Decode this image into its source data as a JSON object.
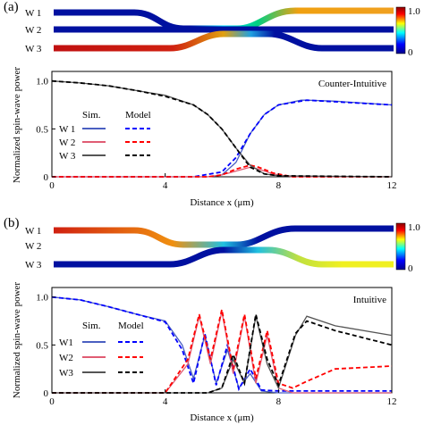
{
  "figure": {
    "panels": [
      {
        "label": "(a)",
        "waveguide_labels": [
          "W 1",
          "W 2",
          "W 3"
        ],
        "colorbar": {
          "max_label": "1.0",
          "min_label": "0",
          "colors": [
            "#00008b",
            "#0000ff",
            "#00ffff",
            "#ffff00",
            "#ff0000",
            "#8b0000"
          ]
        },
        "mode_label": "Counter-Intuitive"
      },
      {
        "label": "(b)",
        "waveguide_labels": [
          "W 1",
          "W 2",
          "W 3"
        ],
        "colorbar": {
          "max_label": "1.0",
          "min_label": "0",
          "colors": [
            "#00008b",
            "#0000ff",
            "#00ffff",
            "#ffff00",
            "#ff0000",
            "#8b0000"
          ]
        },
        "mode_label": "Intuitive"
      }
    ]
  },
  "chart_data": [
    {
      "type": "line",
      "panel": "a",
      "ylabel": "Normalized spin-wave power",
      "xlabel": "Distance x (μm)",
      "xlim": [
        0,
        12
      ],
      "ylim": [
        0,
        1.1
      ],
      "x_ticks": [
        "0",
        "4",
        "8",
        "12"
      ],
      "y_ticks": [
        "0",
        "0.5",
        "1.0"
      ],
      "legend": {
        "sim_header": "Sim.",
        "model_header": "Model",
        "entries": [
          "W 1",
          "W 2",
          "W 3"
        ]
      },
      "series": [
        {
          "name": "W 1",
          "kind": "Sim.",
          "color": "#4a5fc1",
          "x": [
            0,
            4,
            5.5,
            6,
            6.5,
            7,
            7.5,
            8,
            8.8,
            9,
            10,
            12
          ],
          "y": [
            0,
            0,
            0,
            0.02,
            0.15,
            0.45,
            0.65,
            0.75,
            0.8,
            0.8,
            0.79,
            0.75
          ]
        },
        {
          "name": "W 1",
          "kind": "Model",
          "color": "#0000ff",
          "x": [
            0,
            5,
            6,
            6.5,
            7,
            7.5,
            8,
            9,
            12
          ],
          "y": [
            0,
            0,
            0.05,
            0.2,
            0.45,
            0.65,
            0.75,
            0.8,
            0.75
          ]
        },
        {
          "name": "W 2",
          "kind": "Sim.",
          "color": "#e05c73",
          "x": [
            0,
            5.5,
            6,
            6.5,
            7,
            7.3,
            7.8,
            8.5,
            12
          ],
          "y": [
            0,
            0,
            0.02,
            0.06,
            0.1,
            0.08,
            0.03,
            0,
            0
          ]
        },
        {
          "name": "W 2",
          "kind": "Model",
          "color": "#ff0000",
          "x": [
            0,
            5.5,
            6,
            6.5,
            7,
            7.3,
            7.8,
            8.5,
            12
          ],
          "y": [
            0,
            0,
            0.02,
            0.08,
            0.12,
            0.1,
            0.04,
            0,
            0
          ]
        },
        {
          "name": "W 3",
          "kind": "Sim.",
          "color": "#555555",
          "x": [
            0,
            1,
            2,
            3,
            4,
            5,
            5.5,
            6,
            6.5,
            7,
            7.5,
            8,
            12
          ],
          "y": [
            1.0,
            0.98,
            0.95,
            0.9,
            0.85,
            0.75,
            0.65,
            0.5,
            0.3,
            0.12,
            0.03,
            0.01,
            0
          ]
        },
        {
          "name": "W 3",
          "kind": "Model",
          "color": "#000000",
          "x": [
            0,
            1,
            2,
            3,
            4,
            5,
            5.5,
            6,
            6.5,
            7,
            7.5,
            8,
            12
          ],
          "y": [
            1.0,
            0.98,
            0.95,
            0.9,
            0.84,
            0.75,
            0.65,
            0.5,
            0.3,
            0.1,
            0.03,
            0.01,
            0
          ]
        }
      ]
    },
    {
      "type": "line",
      "panel": "b",
      "ylabel": "Normalized spin-wave power",
      "xlabel": "Distance x (μm)",
      "xlim": [
        0,
        12
      ],
      "ylim": [
        0,
        1.1
      ],
      "x_ticks": [
        "0",
        "4",
        "8",
        "12"
      ],
      "y_ticks": [
        "0",
        "0.5",
        "1.0"
      ],
      "legend": {
        "sim_header": "Sim.",
        "model_header": "Model",
        "entries": [
          "W1",
          "W2",
          "W3"
        ]
      },
      "series": [
        {
          "name": "W1",
          "kind": "Sim.",
          "color": "#4a5fc1",
          "x": [
            0,
            1,
            2,
            3,
            4,
            4.6,
            5,
            5.4,
            5.8,
            6.2,
            6.6,
            7,
            7.4,
            8,
            10,
            12
          ],
          "y": [
            1.0,
            0.97,
            0.9,
            0.82,
            0.75,
            0.5,
            0.15,
            0.6,
            0.1,
            0.45,
            0.05,
            0.2,
            0.02,
            0,
            0,
            0
          ]
        },
        {
          "name": "W1",
          "kind": "Model",
          "color": "#0000ff",
          "x": [
            0,
            1,
            2,
            3,
            4,
            4.6,
            5,
            5.4,
            5.8,
            6.2,
            6.6,
            7,
            7.4,
            8,
            10,
            12
          ],
          "y": [
            1.0,
            0.97,
            0.9,
            0.82,
            0.74,
            0.45,
            0.1,
            0.62,
            0.08,
            0.5,
            0.04,
            0.25,
            0.03,
            0.02,
            0.02,
            0.02
          ]
        },
        {
          "name": "W2",
          "kind": "Sim.",
          "color": "#e05c73",
          "x": [
            0,
            4,
            4.8,
            5.2,
            5.6,
            6,
            6.4,
            6.8,
            7.2,
            7.6,
            8,
            8.5,
            10,
            12
          ],
          "y": [
            0,
            0,
            0.3,
            0.8,
            0.3,
            0.85,
            0.2,
            0.8,
            0.1,
            0.6,
            0.05,
            0,
            0,
            0
          ]
        },
        {
          "name": "W2",
          "kind": "Model",
          "color": "#ff0000",
          "x": [
            0,
            4,
            4.8,
            5.2,
            5.6,
            6,
            6.4,
            6.8,
            7.2,
            7.6,
            8,
            8.5,
            9,
            10,
            12
          ],
          "y": [
            0,
            0,
            0.35,
            0.82,
            0.35,
            0.87,
            0.25,
            0.82,
            0.15,
            0.65,
            0.1,
            0.05,
            0.12,
            0.25,
            0.28
          ]
        },
        {
          "name": "W3",
          "kind": "Sim.",
          "color": "#555555",
          "x": [
            0,
            5.5,
            6,
            6.4,
            6.8,
            7.2,
            7.6,
            8,
            8.6,
            9,
            10,
            12
          ],
          "y": [
            0,
            0,
            0.05,
            0.35,
            0.1,
            0.8,
            0.3,
            0.05,
            0.6,
            0.8,
            0.7,
            0.6
          ]
        },
        {
          "name": "W3",
          "kind": "Model",
          "color": "#000000",
          "x": [
            0,
            5.5,
            6,
            6.4,
            6.8,
            7.2,
            7.6,
            8,
            8.6,
            9,
            10,
            12
          ],
          "y": [
            0,
            0,
            0.05,
            0.4,
            0.1,
            0.82,
            0.35,
            0.08,
            0.62,
            0.75,
            0.65,
            0.5
          ]
        }
      ]
    }
  ]
}
